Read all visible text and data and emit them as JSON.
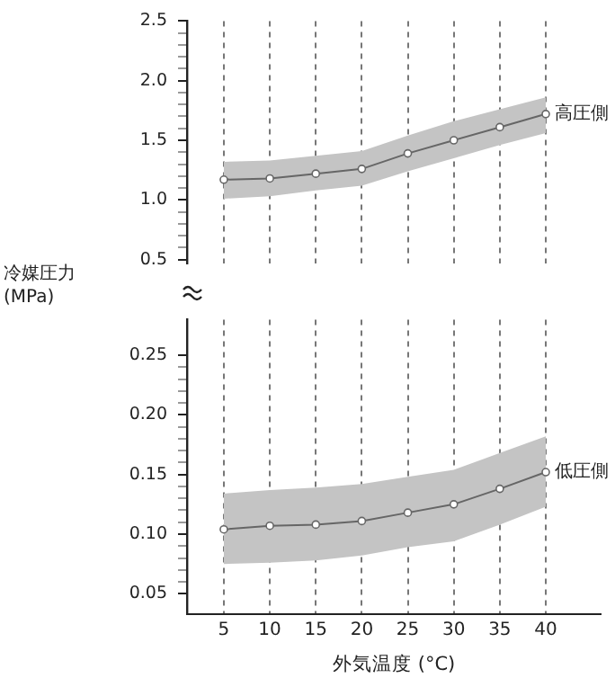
{
  "chart_data": [
    {
      "type": "line",
      "x": [
        5,
        10,
        15,
        20,
        25,
        30,
        35,
        40
      ],
      "xticks": [
        5,
        10,
        15,
        20,
        25,
        30,
        35,
        40
      ],
      "ylim": [
        0.47,
        2.5
      ],
      "yticks": [
        0.5,
        {
          "value": 0.6,
          "label": null
        },
        {
          "value": 0.7,
          "label": null
        },
        {
          "value": 0.8,
          "label": null
        },
        {
          "value": 0.9,
          "label": null
        },
        {
          "value": 1,
          "label": "1.0"
        },
        {
          "value": 1.1,
          "label": null
        },
        {
          "value": 1.2,
          "label": null
        },
        {
          "value": 1.3,
          "label": null
        },
        {
          "value": 1.4,
          "label": null
        },
        1.5,
        {
          "value": 1.6,
          "label": null
        },
        {
          "value": 1.7,
          "label": null
        },
        {
          "value": 1.8,
          "label": null
        },
        {
          "value": 1.9,
          "label": null
        },
        {
          "value": 2,
          "label": "2.0"
        },
        {
          "value": 2.1,
          "label": null
        },
        {
          "value": 2.2,
          "label": null
        },
        {
          "value": 2.3,
          "label": null
        },
        {
          "value": 2.4,
          "label": null
        },
        2.5
      ],
      "series": [
        {
          "name": "高圧側",
          "color": "#666666",
          "values": [
            1.17,
            1.18,
            1.22,
            1.26,
            1.39,
            1.5,
            1.61,
            1.72
          ],
          "lower": [
            1.01,
            1.03,
            1.08,
            1.12,
            1.24,
            1.35,
            1.46,
            1.56
          ],
          "upper": [
            1.32,
            1.33,
            1.37,
            1.41,
            1.54,
            1.66,
            1.76,
            1.86
          ]
        }
      ],
      "grid": "x",
      "legend": "right",
      "marker": "circle",
      "line_style": "solid",
      "tick_labels": "y"
    },
    {
      "type": "line",
      "x": [
        5,
        10,
        15,
        20,
        25,
        30,
        35,
        40
      ],
      "xlim": [
        1,
        46
      ],
      "xticks": [
        5,
        10,
        15,
        20,
        25,
        30,
        35,
        40
      ],
      "ylim": [
        0.033,
        0.28
      ],
      "yticks": [
        0.05,
        {
          "value": 0.06,
          "label": null
        },
        {
          "value": 0.07,
          "label": null
        },
        {
          "value": 0.08,
          "label": null
        },
        {
          "value": 0.09,
          "label": null
        },
        {
          "value": 0.1,
          "label": "0.10"
        },
        {
          "value": 0.11,
          "label": null
        },
        {
          "value": 0.12,
          "label": null
        },
        {
          "value": 0.13,
          "label": null
        },
        {
          "value": 0.14,
          "label": null
        },
        0.15,
        {
          "value": 0.16,
          "label": null
        },
        {
          "value": 0.17,
          "label": null
        },
        {
          "value": 0.18,
          "label": null
        },
        {
          "value": 0.19,
          "label": null
        },
        {
          "value": 0.2,
          "label": "0.20"
        },
        {
          "value": 0.21,
          "label": null
        },
        {
          "value": 0.22,
          "label": null
        },
        {
          "value": 0.23,
          "label": null
        },
        {
          "value": 0.24,
          "label": null
        },
        0.25
      ],
      "xlabel": "外気温度 (°C)",
      "ylabel": "冷媒圧力\n(MPa)",
      "series": [
        {
          "name": "低圧側",
          "color": "#666666",
          "values": [
            0.104,
            0.107,
            0.108,
            0.111,
            0.118,
            0.125,
            0.138,
            0.152
          ],
          "lower": [
            0.075,
            0.076,
            0.078,
            0.082,
            0.089,
            0.094,
            0.108,
            0.123
          ],
          "upper": [
            0.134,
            0.137,
            0.139,
            0.142,
            0.148,
            0.154,
            0.168,
            0.182
          ]
        }
      ],
      "grid": "x",
      "legend": "right",
      "marker": "circle",
      "line_style": "solid"
    }
  ]
}
